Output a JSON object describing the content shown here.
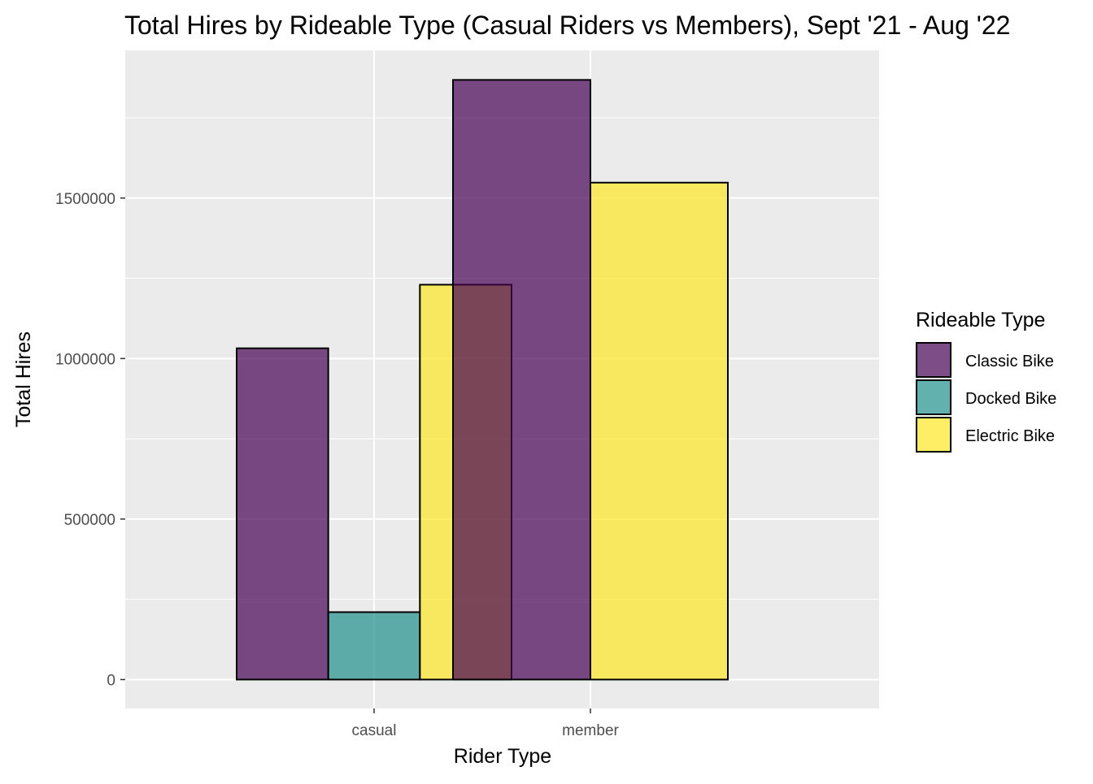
{
  "chart_data": {
    "type": "bar",
    "title": "Total Hires by Rideable Type (Casual Riders vs Members), Sept '21 - Aug '22",
    "xlabel": "Rider Type",
    "ylabel": "Total Hires",
    "categories": [
      "casual",
      "member"
    ],
    "series": [
      {
        "name": "Classic Bike",
        "color": "#440154",
        "values": [
          1032000,
          1868000
        ]
      },
      {
        "name": "Docked Bike",
        "color": "#21908C",
        "values": [
          210000,
          null
        ]
      },
      {
        "name": "Electric Bike",
        "color": "#FDE725",
        "values": [
          1230000,
          1548000
        ]
      }
    ],
    "ylim": [
      -90000,
      1960000
    ],
    "yticks": [
      0,
      500000,
      1000000,
      1500000
    ],
    "ytick_labels": [
      "0",
      "500000",
      "1000000",
      "1500000"
    ],
    "legend": {
      "title": "Rideable Type",
      "position": "right",
      "items": [
        "Classic Bike",
        "Docked Bike",
        "Electric Bike"
      ]
    },
    "grid": true,
    "bar_alpha": 0.7,
    "panel_background": "#EBEBEB",
    "grid_color": "#FFFFFF",
    "bar_outline": "#000000"
  }
}
